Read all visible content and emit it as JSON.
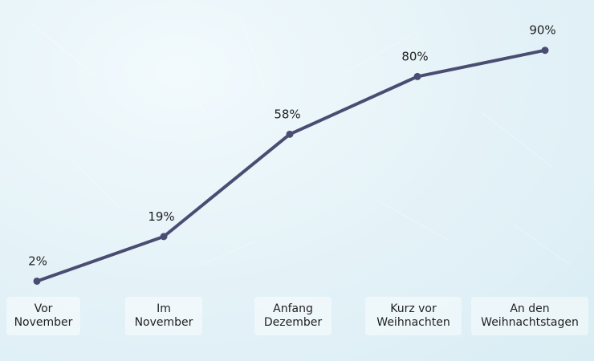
{
  "chart_data": {
    "type": "line",
    "title": "",
    "xlabel": "",
    "ylabel": "",
    "categories": [
      [
        "Vor",
        "November"
      ],
      [
        "Im",
        "November"
      ],
      [
        "Anfang",
        "Dezember"
      ],
      [
        "Kurz vor",
        "Weihnachten"
      ],
      [
        "An den",
        "Weihnachtstagen"
      ]
    ],
    "series": [
      {
        "values": [
          2,
          19,
          58,
          80,
          90
        ],
        "value_labels": [
          "2%",
          "19%",
          "58%",
          "80%",
          "90%"
        ]
      }
    ],
    "ylim": [
      0,
      100
    ],
    "grid": false,
    "legend": "none",
    "colors": {
      "line": "#4a4d72",
      "label_text": "#1f1f1f",
      "background": "#e6f3f8"
    }
  }
}
